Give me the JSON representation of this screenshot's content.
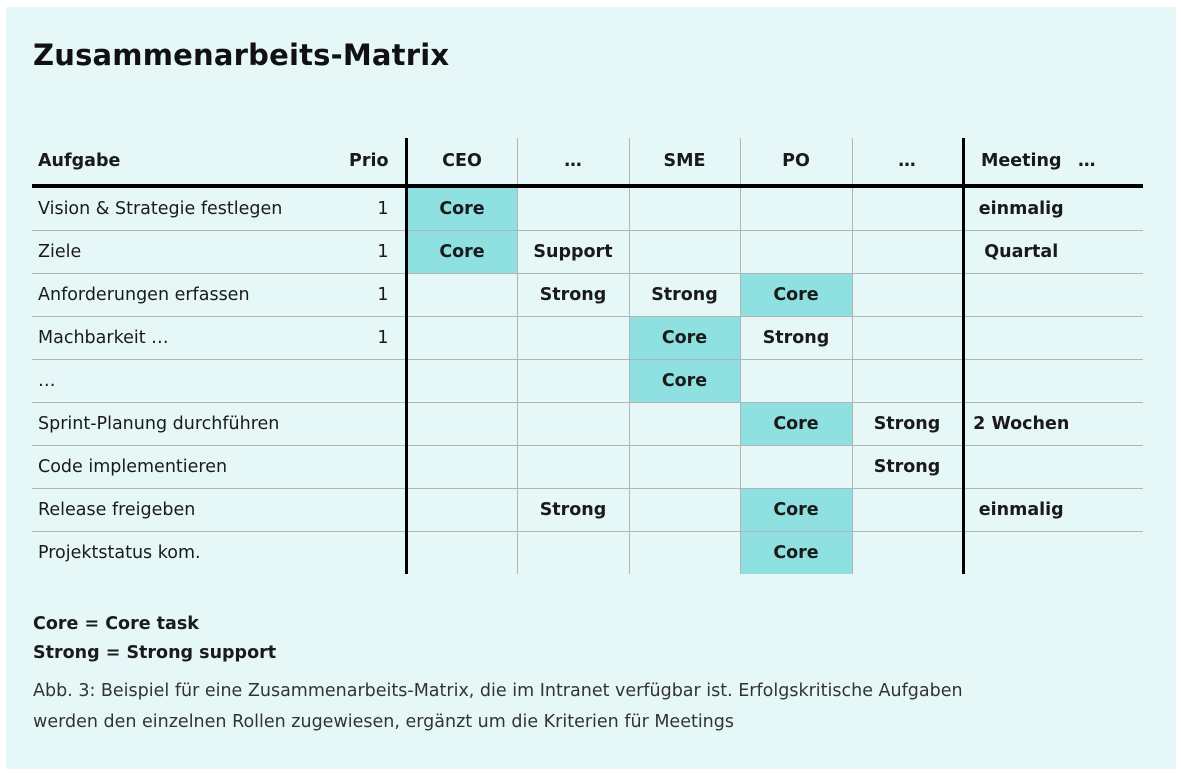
{
  "title": "Zusammenarbeits-Matrix",
  "headers": {
    "task": "Aufgabe",
    "prio": "Prio",
    "roles": [
      "CEO",
      "…",
      "SME",
      "PO",
      "…"
    ],
    "meeting": "Meeting",
    "extra": "…"
  },
  "rows": [
    {
      "task": "Vision & Strategie festlegen",
      "prio": "1",
      "cells": [
        "Core",
        "",
        "",
        "",
        ""
      ],
      "meeting": "einmalig"
    },
    {
      "task": "Ziele",
      "prio": "1",
      "cells": [
        "Core",
        "Support",
        "",
        "",
        ""
      ],
      "meeting": "Quartal"
    },
    {
      "task": "Anforderungen erfassen",
      "prio": "1",
      "cells": [
        "",
        "Strong",
        "Strong",
        "Core",
        ""
      ],
      "meeting": ""
    },
    {
      "task": "Machbarkeit …",
      "prio": "1",
      "cells": [
        "",
        "",
        "Core",
        "Strong",
        ""
      ],
      "meeting": ""
    },
    {
      "task": "…",
      "prio": "",
      "cells": [
        "",
        "",
        "Core",
        "",
        ""
      ],
      "meeting": ""
    },
    {
      "task": "Sprint-Planung durchführen",
      "prio": "",
      "cells": [
        "",
        "",
        "",
        "Core",
        "Strong"
      ],
      "meeting": "2 Wochen"
    },
    {
      "task": "Code implementieren",
      "prio": "",
      "cells": [
        "",
        "",
        "",
        "",
        "Strong"
      ],
      "meeting": ""
    },
    {
      "task": "Release freigeben",
      "prio": "",
      "cells": [
        "",
        "Strong",
        "",
        "Core",
        ""
      ],
      "meeting": "einmalig"
    },
    {
      "task": "Projektstatus kom.",
      "prio": "",
      "cells": [
        "",
        "",
        "",
        "Core",
        ""
      ],
      "meeting": ""
    }
  ],
  "legend": [
    "Core = Core task",
    "Strong = Strong support"
  ],
  "caption": "Abb. 3: Beispiel für eine Zusammenarbeits-Matrix, die im Intranet verfügbar ist. Erfolgskritische Aufgaben werden den einzelnen Rollen zugewiesen, ergänzt um die Kriterien für Meetings",
  "colors": {
    "background": "#e6f7f7",
    "highlight": "#8fe0e0"
  }
}
